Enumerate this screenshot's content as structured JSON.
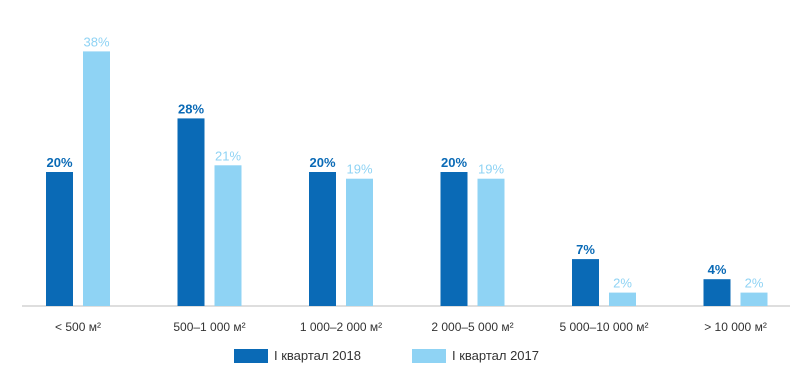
{
  "chart_data": {
    "type": "bar",
    "categories": [
      "< 500 м²",
      "500–1 000 м²",
      "1 000–2 000 м²",
      "2 000–5 000 м²",
      "5 000–10 000 м²",
      "> 10 000 м²"
    ],
    "series": [
      {
        "name": "I квартал 2018",
        "values": [
          20,
          28,
          20,
          20,
          7,
          4
        ],
        "labels": [
          "20%",
          "28%",
          "20%",
          "20%",
          "7%",
          "4%"
        ],
        "color": "#0a6ab6"
      },
      {
        "name": "I квартал 2017",
        "values": [
          38,
          21,
          19,
          19,
          2,
          2
        ],
        "labels": [
          "38%",
          "21%",
          "19%",
          "19%",
          "2%",
          "2%"
        ],
        "color": "#8fd3f4"
      }
    ],
    "ylim": [
      0,
      40
    ],
    "grid": false,
    "legend_position": "bottom",
    "title": "",
    "xlabel": "",
    "ylabel": ""
  }
}
